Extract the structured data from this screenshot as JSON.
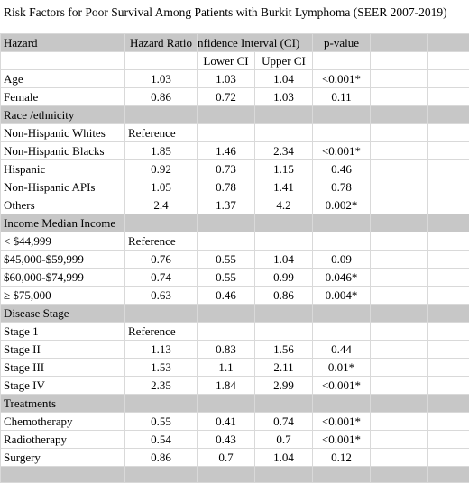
{
  "title": "Risk Factors for Poor Survival Among Patients with Burkit Lymphoma (SEER 2007-2019)",
  "header": {
    "hazard": "Hazard",
    "hazard_ratio": "Hazard Ratio",
    "ci": "nfidence Interval (CI)",
    "p_value": "p-value",
    "lower_ci": "Lower CI",
    "upper_ci": "Upper CI"
  },
  "rows": [
    {
      "kind": "row",
      "label": "Age",
      "hr": "1.03",
      "lower": "1.03",
      "upper": "1.04",
      "p": "<0.001*"
    },
    {
      "kind": "row",
      "label": "Female",
      "hr": "0.86",
      "lower": "0.72",
      "upper": "1.03",
      "p": "0.11"
    },
    {
      "kind": "section",
      "label": "Race /ethnicity"
    },
    {
      "kind": "ref",
      "label": "Non-Hispanic Whites",
      "hr": "Reference"
    },
    {
      "kind": "row",
      "label": "Non-Hispanic Blacks",
      "hr": "1.85",
      "lower": "1.46",
      "upper": "2.34",
      "p": "<0.001*"
    },
    {
      "kind": "row",
      "label": "Hispanic",
      "hr": "0.92",
      "lower": "0.73",
      "upper": "1.15",
      "p": "0.46"
    },
    {
      "kind": "row",
      "label": "Non-Hispanic APIs",
      "hr": "1.05",
      "lower": "0.78",
      "upper": "1.41",
      "p": "0.78"
    },
    {
      "kind": "row",
      "label": "Others",
      "hr": "2.4",
      "lower": "1.37",
      "upper": "4.2",
      "p": "0.002*"
    },
    {
      "kind": "section",
      "label": "Income Median Income"
    },
    {
      "kind": "ref",
      "label": "< $44,999",
      "hr": "Reference"
    },
    {
      "kind": "row",
      "label": "$45,000-$59,999",
      "hr": "0.76",
      "lower": "0.55",
      "upper": "1.04",
      "p": "0.09"
    },
    {
      "kind": "row",
      "label": "$60,000-$74,999",
      "hr": "0.74",
      "lower": "0.55",
      "upper": "0.99",
      "p": "0.046*"
    },
    {
      "kind": "row",
      "label": "≥ $75,000",
      "hr": "0.63",
      "lower": "0.46",
      "upper": "0.86",
      "p": "0.004*"
    },
    {
      "kind": "section",
      "label": "Disease Stage"
    },
    {
      "kind": "ref",
      "label": "Stage 1",
      "hr": "Reference"
    },
    {
      "kind": "row",
      "label": "Stage II",
      "hr": "1.13",
      "lower": "0.83",
      "upper": "1.56",
      "p": "0.44"
    },
    {
      "kind": "row",
      "label": "Stage III",
      "hr": "1.53",
      "lower": "1.1",
      "upper": "2.11",
      "p": "0.01*"
    },
    {
      "kind": "row",
      "label": "Stage IV",
      "hr": "2.35",
      "lower": "1.84",
      "upper": "2.99",
      "p": "<0.001*"
    },
    {
      "kind": "section",
      "label": "Treatments"
    },
    {
      "kind": "row",
      "label": "Chemotherapy",
      "hr": "0.55",
      "lower": "0.41",
      "upper": "0.74",
      "p": "<0.001*"
    },
    {
      "kind": "row",
      "label": "Radiotherapy",
      "hr": "0.54",
      "lower": "0.43",
      "upper": "0.7",
      "p": "<0.001*"
    },
    {
      "kind": "row",
      "label": "Surgery",
      "hr": "0.86",
      "lower": "0.7",
      "upper": "1.04",
      "p": "0.12"
    }
  ]
}
